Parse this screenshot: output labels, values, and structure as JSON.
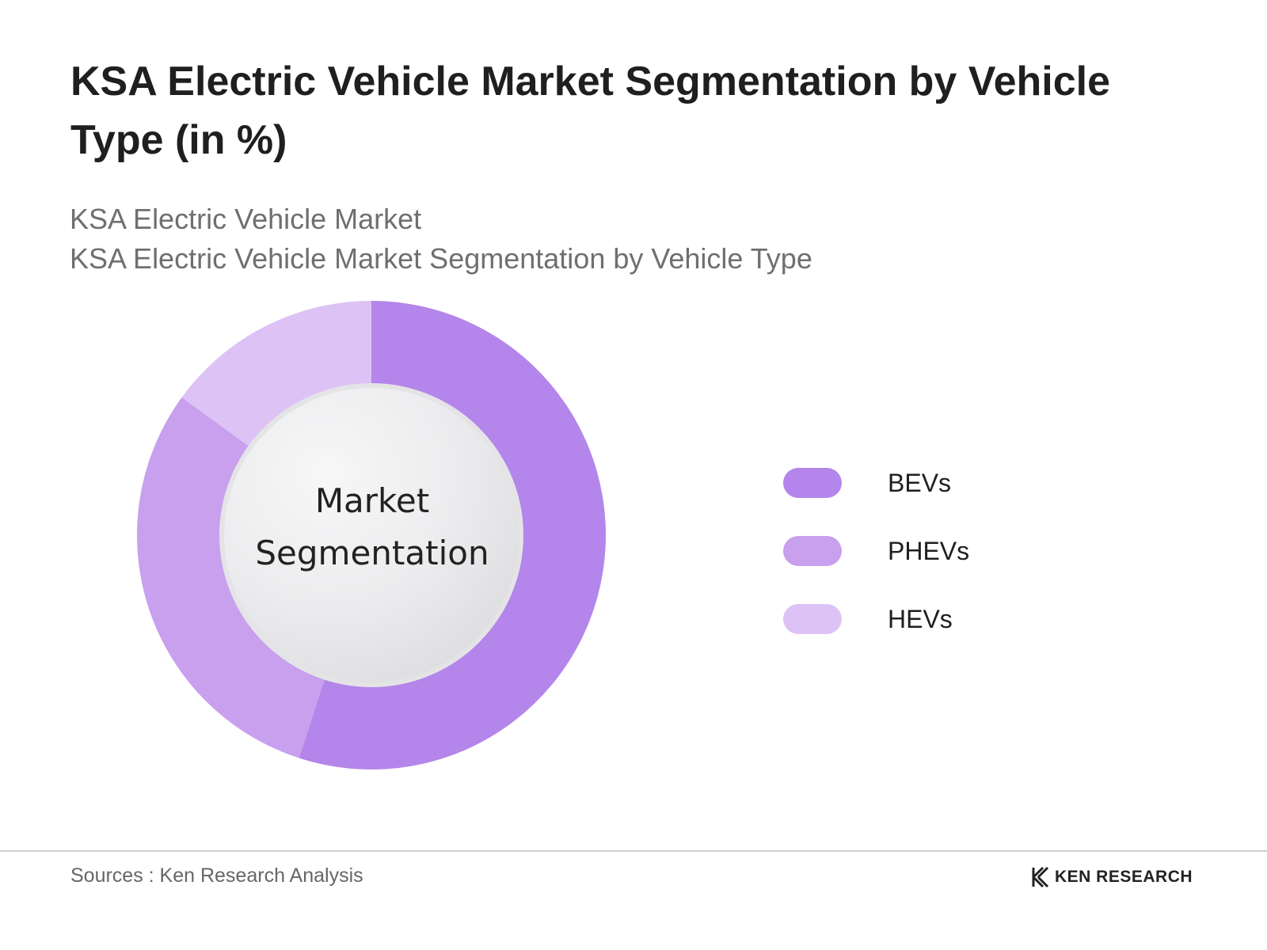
{
  "header": {
    "title": "KSA Electric Vehicle Market Segmentation by Vehicle Type (in %)",
    "subtitle_1": "KSA Electric Vehicle Market",
    "subtitle_2": "KSA Electric Vehicle Market Segmentation by Vehicle Type"
  },
  "chart_data": {
    "type": "pie",
    "style": "donut",
    "title": "KSA Electric Vehicle Market Segmentation by Vehicle Type (in %)",
    "center_label_line1": "Market",
    "center_label_line2": "Segmentation",
    "legend_position": "right",
    "categories": [
      "BEVs",
      "PHEVs",
      "HEVs"
    ],
    "values": [
      55,
      30,
      15
    ],
    "colors": [
      "#b485ea",
      "#c8a0ee",
      "#ddc3f5"
    ]
  },
  "footer": {
    "source": "Sources : Ken Research Analysis",
    "brand": "KEN RESEARCH"
  }
}
